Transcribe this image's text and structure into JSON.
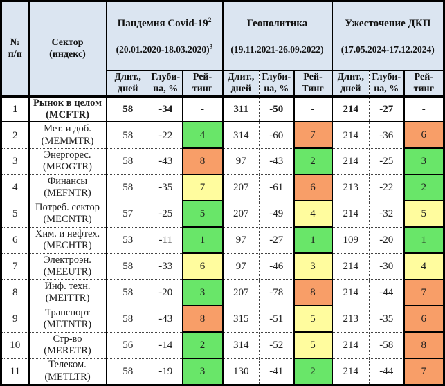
{
  "palette": {
    "header_bg": "#dbe5f1",
    "green": "#69e669",
    "yellow": "#fffc9e",
    "orange": "#f89e68",
    "none": "transparent"
  },
  "header": {
    "num_label": "№\nп/п",
    "sector_label": "Сектор\n(индекс)",
    "groups": [
      {
        "title": "Пандемия Covid-19",
        "title_sup": "2",
        "period": "(20.01.2020-18.03.2020)",
        "period_sup": "3",
        "dur_label": "Длит.,\nдней",
        "depth_label": "Глуби-\nна, %",
        "rating_label": "Рей-\nтинг"
      },
      {
        "title": "Геополитика",
        "title_sup": "",
        "period": "(19.11.2021-26.09.2022)",
        "period_sup": "",
        "dur_label": "Длит.,\nдней",
        "depth_label": "Глуби-\nна, %",
        "rating_label": "Рей-\nТинг"
      },
      {
        "title": "Ужесточение ДКП",
        "title_sup": "",
        "period": "(17.05.2024-17.12.2024)",
        "period_sup": "",
        "dur_label": "Длит.,\nдней",
        "depth_label": "Глуби-\nна, %",
        "rating_label": "Рей-\nтинг"
      }
    ]
  },
  "rows": [
    {
      "num": "1",
      "sector": "Рынок в целом",
      "ticker": "(MCFTR)",
      "bold": true,
      "crises": [
        {
          "dur": "58",
          "depth": "-34",
          "rating": "-",
          "color": "none"
        },
        {
          "dur": "311",
          "depth": "-50",
          "rating": "-",
          "color": "none"
        },
        {
          "dur": "214",
          "depth": "-27",
          "rating": "-",
          "color": "none"
        }
      ]
    },
    {
      "num": "2",
      "sector": "Мет. и доб.",
      "ticker": "(MEMMTR)",
      "bold": false,
      "crises": [
        {
          "dur": "58",
          "depth": "-22",
          "rating": "4",
          "color": "green"
        },
        {
          "dur": "314",
          "depth": "-60",
          "rating": "7",
          "color": "orange"
        },
        {
          "dur": "214",
          "depth": "-36",
          "rating": "6",
          "color": "orange"
        }
      ]
    },
    {
      "num": "3",
      "sector": "Энергорес.",
      "ticker": "(MEOGTR)",
      "bold": false,
      "crises": [
        {
          "dur": "58",
          "depth": "-43",
          "rating": "8",
          "color": "orange"
        },
        {
          "dur": "97",
          "depth": "-43",
          "rating": "2",
          "color": "green"
        },
        {
          "dur": "214",
          "depth": "-25",
          "rating": "3",
          "color": "green"
        }
      ]
    },
    {
      "num": "4",
      "sector": "Финансы",
      "ticker": "(MEFNTR)",
      "bold": false,
      "crises": [
        {
          "dur": "58",
          "depth": "-35",
          "rating": "7",
          "color": "yellow"
        },
        {
          "dur": "207",
          "depth": "-61",
          "rating": "6",
          "color": "orange"
        },
        {
          "dur": "213",
          "depth": "-22",
          "rating": "2",
          "color": "green"
        }
      ]
    },
    {
      "num": "5",
      "sector": "Потреб. сектор",
      "ticker": "(MECNTR)",
      "bold": false,
      "crises": [
        {
          "dur": "57",
          "depth": "-25",
          "rating": "5",
          "color": "green"
        },
        {
          "dur": "207",
          "depth": "-49",
          "rating": "4",
          "color": "yellow"
        },
        {
          "dur": "214",
          "depth": "-32",
          "rating": "5",
          "color": "yellow"
        }
      ]
    },
    {
      "num": "6",
      "sector": "Хим. и нефтех.",
      "ticker": "(MECHTR)",
      "bold": false,
      "crises": [
        {
          "dur": "53",
          "depth": "-11",
          "rating": "1",
          "color": "green"
        },
        {
          "dur": "97",
          "depth": "-27",
          "rating": "1",
          "color": "green"
        },
        {
          "dur": "109",
          "depth": "-20",
          "rating": "1",
          "color": "green"
        }
      ]
    },
    {
      "num": "7",
      "sector": "Электроэн.",
      "ticker": "(MEEUTR)",
      "bold": false,
      "crises": [
        {
          "dur": "58",
          "depth": "-33",
          "rating": "6",
          "color": "yellow"
        },
        {
          "dur": "97",
          "depth": "-46",
          "rating": "3",
          "color": "yellow"
        },
        {
          "dur": "214",
          "depth": "-30",
          "rating": "4",
          "color": "yellow"
        }
      ]
    },
    {
      "num": "8",
      "sector": "Инф. техн.",
      "ticker": "(MEITTR)",
      "bold": false,
      "crises": [
        {
          "dur": "58",
          "depth": "-20",
          "rating": "3",
          "color": "green"
        },
        {
          "dur": "207",
          "depth": "-78",
          "rating": "8",
          "color": "orange"
        },
        {
          "dur": "214",
          "depth": "-44",
          "rating": "7",
          "color": "orange"
        }
      ]
    },
    {
      "num": "9",
      "sector": "Транспорт",
      "ticker": "(METNTR)",
      "bold": false,
      "crises": [
        {
          "dur": "58",
          "depth": "-43",
          "rating": "8",
          "color": "orange"
        },
        {
          "dur": "315",
          "depth": "-51",
          "rating": "5",
          "color": "yellow"
        },
        {
          "dur": "213",
          "depth": "-35",
          "rating": "6",
          "color": "orange"
        }
      ]
    },
    {
      "num": "10",
      "sector": "Стр-во",
      "ticker": "(MERETR)",
      "bold": false,
      "crises": [
        {
          "dur": "56",
          "depth": "-14",
          "rating": "2",
          "color": "green"
        },
        {
          "dur": "314",
          "depth": "-52",
          "rating": "5",
          "color": "yellow"
        },
        {
          "dur": "214",
          "depth": "-58",
          "rating": "8",
          "color": "orange"
        }
      ]
    },
    {
      "num": "11",
      "sector": "Телеком.",
      "ticker": "(METLTR)",
      "bold": false,
      "crises": [
        {
          "dur": "58",
          "depth": "-19",
          "rating": "3",
          "color": "green"
        },
        {
          "dur": "130",
          "depth": "-41",
          "rating": "2",
          "color": "green"
        },
        {
          "dur": "214",
          "depth": "-44",
          "rating": "7",
          "color": "orange"
        }
      ]
    }
  ]
}
